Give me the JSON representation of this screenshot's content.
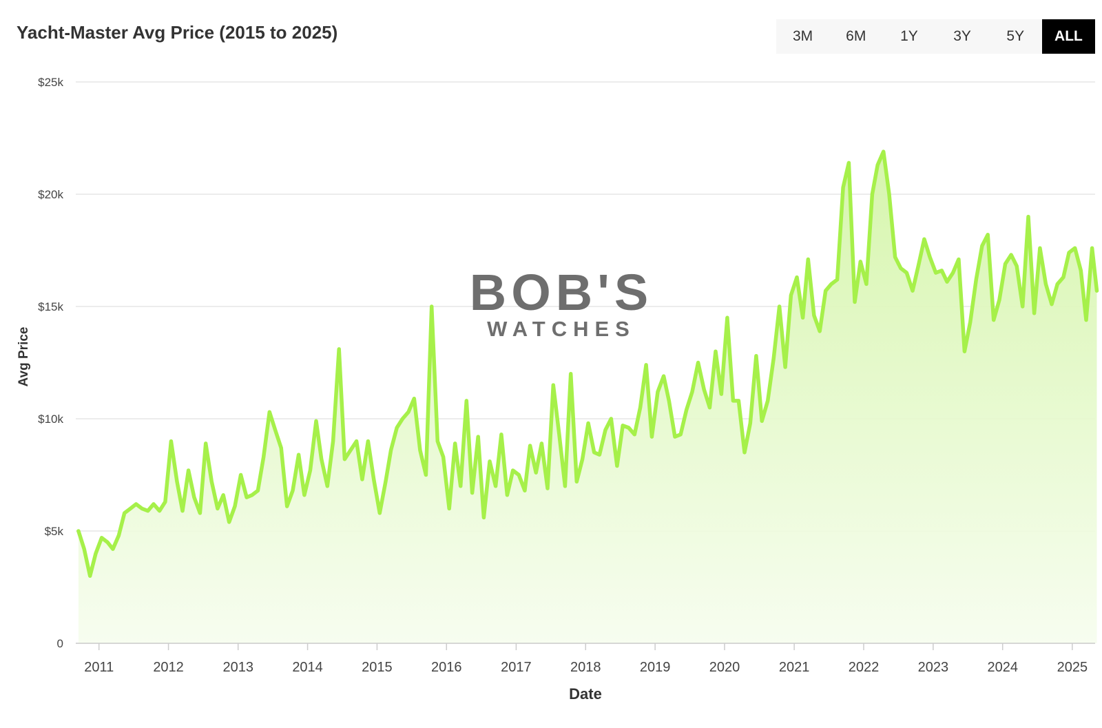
{
  "range_selector": {
    "buttons": [
      {
        "label": "3M",
        "active": false
      },
      {
        "label": "6M",
        "active": false
      },
      {
        "label": "1Y",
        "active": false
      },
      {
        "label": "3Y",
        "active": false
      },
      {
        "label": "5Y",
        "active": false
      },
      {
        "label": "ALL",
        "active": true
      }
    ]
  },
  "watermark": {
    "brand": "BOB'S",
    "sub": "WATCHES"
  },
  "colors": {
    "line": "#a6f04a",
    "fill_top": "#d4f5a8",
    "fill_bottom": "#f6fdee",
    "grid": "#e6e6e6",
    "watermark": "#6e6e6e",
    "watermark_accent": "#b8f07a"
  },
  "chart_data": {
    "type": "area",
    "title": "Yacht-Master Avg Price (2015 to 2025)",
    "xlabel": "Date",
    "ylabel": "Avg Price",
    "ylim": [
      0,
      25000
    ],
    "xlim": [
      "2010-09",
      "2025-05"
    ],
    "y_ticks": [
      {
        "value": 0,
        "label": "0"
      },
      {
        "value": 5000,
        "label": "$5k"
      },
      {
        "value": 10000,
        "label": "$10k"
      },
      {
        "value": 15000,
        "label": "$15k"
      },
      {
        "value": 20000,
        "label": "$20k"
      },
      {
        "value": 25000,
        "label": "$25k"
      }
    ],
    "x_ticks": [
      "2011",
      "2012",
      "2013",
      "2014",
      "2015",
      "2016",
      "2017",
      "2018",
      "2019",
      "2020",
      "2021",
      "2022",
      "2023",
      "2024",
      "2025"
    ],
    "grid": true,
    "legend": "none",
    "series": [
      {
        "points": [
          [
            "2010-09-15",
            5000
          ],
          [
            "2010-10-15",
            4200
          ],
          [
            "2010-11-15",
            3000
          ],
          [
            "2010-12-15",
            4000
          ],
          [
            "2011-01-15",
            4700
          ],
          [
            "2011-02-15",
            4500
          ],
          [
            "2011-03-15",
            4200
          ],
          [
            "2011-04-15",
            4800
          ],
          [
            "2011-05-15",
            5800
          ],
          [
            "2011-06-15",
            6000
          ],
          [
            "2011-07-15",
            6200
          ],
          [
            "2011-08-15",
            6000
          ],
          [
            "2011-09-15",
            5900
          ],
          [
            "2011-10-15",
            6200
          ],
          [
            "2011-11-15",
            5900
          ],
          [
            "2011-12-15",
            6300
          ],
          [
            "2012-01-15",
            9000
          ],
          [
            "2012-02-15",
            7200
          ],
          [
            "2012-03-15",
            5900
          ],
          [
            "2012-04-15",
            7700
          ],
          [
            "2012-05-15",
            6500
          ],
          [
            "2012-06-15",
            5800
          ],
          [
            "2012-07-15",
            8900
          ],
          [
            "2012-08-15",
            7200
          ],
          [
            "2012-09-15",
            6000
          ],
          [
            "2012-10-15",
            6600
          ],
          [
            "2012-11-15",
            5400
          ],
          [
            "2012-12-15",
            6100
          ],
          [
            "2013-01-15",
            7500
          ],
          [
            "2013-02-15",
            6500
          ],
          [
            "2013-03-15",
            6600
          ],
          [
            "2013-04-15",
            6800
          ],
          [
            "2013-05-15",
            8300
          ],
          [
            "2013-06-15",
            10300
          ],
          [
            "2013-07-15",
            9500
          ],
          [
            "2013-08-15",
            8700
          ],
          [
            "2013-09-15",
            6100
          ],
          [
            "2013-10-15",
            6800
          ],
          [
            "2013-11-15",
            8400
          ],
          [
            "2013-12-15",
            6600
          ],
          [
            "2014-01-15",
            7700
          ],
          [
            "2014-02-15",
            9900
          ],
          [
            "2014-03-15",
            8200
          ],
          [
            "2014-04-15",
            7000
          ],
          [
            "2014-05-15",
            9000
          ],
          [
            "2014-06-15",
            13100
          ],
          [
            "2014-07-15",
            8200
          ],
          [
            "2014-08-15",
            8600
          ],
          [
            "2014-09-15",
            9000
          ],
          [
            "2014-10-15",
            7300
          ],
          [
            "2014-11-15",
            9000
          ],
          [
            "2014-12-15",
            7300
          ],
          [
            "2015-01-15",
            5800
          ],
          [
            "2015-02-15",
            7200
          ],
          [
            "2015-03-15",
            8600
          ],
          [
            "2015-04-15",
            9600
          ],
          [
            "2015-05-15",
            10000
          ],
          [
            "2015-06-15",
            10300
          ],
          [
            "2015-07-15",
            10900
          ],
          [
            "2015-08-15",
            8600
          ],
          [
            "2015-09-15",
            7500
          ],
          [
            "2015-10-15",
            15000
          ],
          [
            "2015-11-15",
            9000
          ],
          [
            "2015-12-15",
            8300
          ],
          [
            "2016-01-15",
            6000
          ],
          [
            "2016-02-15",
            8900
          ],
          [
            "2016-03-15",
            7000
          ],
          [
            "2016-04-15",
            10800
          ],
          [
            "2016-05-15",
            6700
          ],
          [
            "2016-06-15",
            9200
          ],
          [
            "2016-07-15",
            5600
          ],
          [
            "2016-08-15",
            8100
          ],
          [
            "2016-09-15",
            7000
          ],
          [
            "2016-10-15",
            9300
          ],
          [
            "2016-11-15",
            6600
          ],
          [
            "2016-12-15",
            7700
          ],
          [
            "2017-01-15",
            7500
          ],
          [
            "2017-02-15",
            6800
          ],
          [
            "2017-03-15",
            8800
          ],
          [
            "2017-04-15",
            7600
          ],
          [
            "2017-05-15",
            8900
          ],
          [
            "2017-06-15",
            6900
          ],
          [
            "2017-07-15",
            11500
          ],
          [
            "2017-08-15",
            9300
          ],
          [
            "2017-09-15",
            7000
          ],
          [
            "2017-10-15",
            12000
          ],
          [
            "2017-11-15",
            7200
          ],
          [
            "2017-12-15",
            8200
          ],
          [
            "2018-01-15",
            9800
          ],
          [
            "2018-02-15",
            8500
          ],
          [
            "2018-03-15",
            8400
          ],
          [
            "2018-04-15",
            9500
          ],
          [
            "2018-05-15",
            10000
          ],
          [
            "2018-06-15",
            7900
          ],
          [
            "2018-07-15",
            9700
          ],
          [
            "2018-08-15",
            9600
          ],
          [
            "2018-09-15",
            9300
          ],
          [
            "2018-10-15",
            10500
          ],
          [
            "2018-11-15",
            12400
          ],
          [
            "2018-12-15",
            9200
          ],
          [
            "2019-01-15",
            11200
          ],
          [
            "2019-02-15",
            11900
          ],
          [
            "2019-03-15",
            10800
          ],
          [
            "2019-04-15",
            9200
          ],
          [
            "2019-05-15",
            9300
          ],
          [
            "2019-06-15",
            10400
          ],
          [
            "2019-07-15",
            11200
          ],
          [
            "2019-08-15",
            12500
          ],
          [
            "2019-09-15",
            11300
          ],
          [
            "2019-10-15",
            10500
          ],
          [
            "2019-11-15",
            13000
          ],
          [
            "2019-12-15",
            11100
          ],
          [
            "2020-01-15",
            14500
          ],
          [
            "2020-02-15",
            10800
          ],
          [
            "2020-03-15",
            10800
          ],
          [
            "2020-04-15",
            8500
          ],
          [
            "2020-05-15",
            9800
          ],
          [
            "2020-06-15",
            12800
          ],
          [
            "2020-07-15",
            9900
          ],
          [
            "2020-08-15",
            10800
          ],
          [
            "2020-09-15",
            12700
          ],
          [
            "2020-10-15",
            15000
          ],
          [
            "2020-11-15",
            12300
          ],
          [
            "2020-12-15",
            15500
          ],
          [
            "2021-01-15",
            16300
          ],
          [
            "2021-02-15",
            14500
          ],
          [
            "2021-03-15",
            17100
          ],
          [
            "2021-04-15",
            14600
          ],
          [
            "2021-05-15",
            13900
          ],
          [
            "2021-06-15",
            15700
          ],
          [
            "2021-07-15",
            16000
          ],
          [
            "2021-08-15",
            16200
          ],
          [
            "2021-09-15",
            20300
          ],
          [
            "2021-10-15",
            21400
          ],
          [
            "2021-11-15",
            15200
          ],
          [
            "2021-12-15",
            17000
          ],
          [
            "2022-01-15",
            16000
          ],
          [
            "2022-02-15",
            20000
          ],
          [
            "2022-03-15",
            21300
          ],
          [
            "2022-04-15",
            21900
          ],
          [
            "2022-05-15",
            20000
          ],
          [
            "2022-06-15",
            17200
          ],
          [
            "2022-07-15",
            16700
          ],
          [
            "2022-08-15",
            16500
          ],
          [
            "2022-09-15",
            15700
          ],
          [
            "2022-10-15",
            16800
          ],
          [
            "2022-11-15",
            18000
          ],
          [
            "2022-12-15",
            17200
          ],
          [
            "2023-01-15",
            16500
          ],
          [
            "2023-02-15",
            16600
          ],
          [
            "2023-03-15",
            16100
          ],
          [
            "2023-04-15",
            16500
          ],
          [
            "2023-05-15",
            17100
          ],
          [
            "2023-06-15",
            13000
          ],
          [
            "2023-07-15",
            14300
          ],
          [
            "2023-08-15",
            16200
          ],
          [
            "2023-09-15",
            17700
          ],
          [
            "2023-10-15",
            18200
          ],
          [
            "2023-11-15",
            14400
          ],
          [
            "2023-12-15",
            15300
          ],
          [
            "2024-01-15",
            16900
          ],
          [
            "2024-02-15",
            17300
          ],
          [
            "2024-03-15",
            16800
          ],
          [
            "2024-04-15",
            15000
          ],
          [
            "2024-05-15",
            19000
          ],
          [
            "2024-06-15",
            14700
          ],
          [
            "2024-07-15",
            17600
          ],
          [
            "2024-08-15",
            16000
          ],
          [
            "2024-09-15",
            15100
          ],
          [
            "2024-10-15",
            16000
          ],
          [
            "2024-11-15",
            16300
          ],
          [
            "2024-12-15",
            17400
          ],
          [
            "2025-01-15",
            17600
          ],
          [
            "2025-02-15",
            16600
          ],
          [
            "2025-03-15",
            14400
          ],
          [
            "2025-04-15",
            17600
          ],
          [
            "2025-05-10",
            15700
          ]
        ]
      }
    ]
  }
}
